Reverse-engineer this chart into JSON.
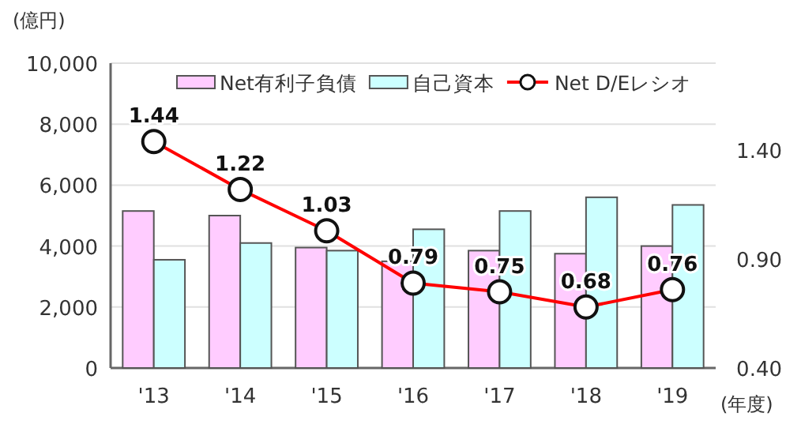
{
  "chart_data": {
    "type": "bar",
    "categories": [
      "'13",
      "'14",
      "'15",
      "'16",
      "'17",
      "'18",
      "'19"
    ],
    "ylabel": "(億円)",
    "xlabel": "(年度)",
    "ylim": [
      0,
      10000
    ],
    "yticks": [
      {
        "value": 0,
        "label": "0"
      },
      {
        "value": 2000,
        "label": "2,000"
      },
      {
        "value": 4000,
        "label": "4,000"
      },
      {
        "value": 6000,
        "label": "6,000"
      },
      {
        "value": 8000,
        "label": "8,000"
      },
      {
        "value": 10000,
        "label": "10,000"
      }
    ],
    "y2lim": [
      0.4,
      1.8
    ],
    "y2ticks": [
      {
        "value": 0.4,
        "label": "0.40"
      },
      {
        "value": 0.9,
        "label": "0.90"
      },
      {
        "value": 1.4,
        "label": "1.40"
      }
    ],
    "grid": "y",
    "legend": "top",
    "series": [
      {
        "name": "Net有利子負債",
        "color": "#ffccff",
        "values": [
          5150,
          5000,
          3950,
          3500,
          3850,
          3750,
          4000
        ]
      },
      {
        "name": "自己資本",
        "color": "#ccffff",
        "values": [
          3550,
          4100,
          3850,
          4550,
          5150,
          5600,
          5350
        ]
      },
      {
        "name": "Net D/Eレシオ",
        "type": "line",
        "axis": "y2",
        "color": "#ff0000",
        "marker": "circle",
        "values": [
          1.44,
          1.22,
          1.03,
          0.79,
          0.75,
          0.68,
          0.76
        ],
        "value_labels": [
          "1.44",
          "1.22",
          "1.03",
          "0.79",
          "0.75",
          "0.68",
          "0.76"
        ]
      }
    ]
  }
}
